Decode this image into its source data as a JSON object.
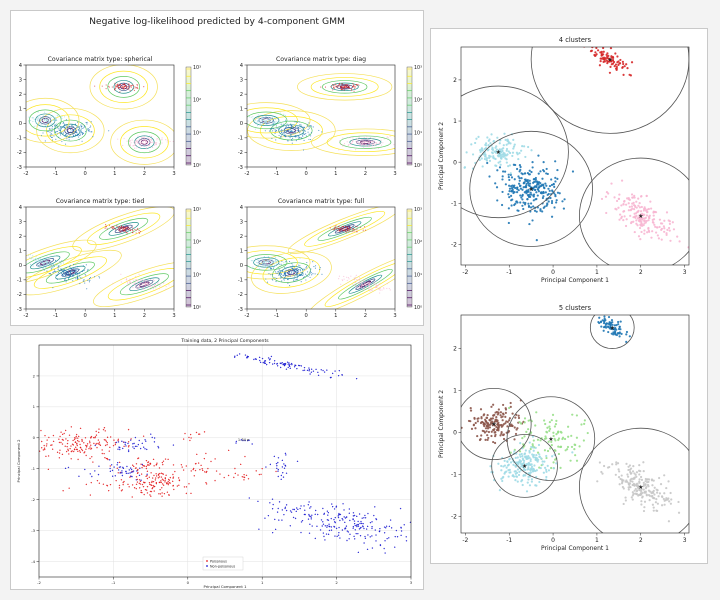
{
  "chart_data": [
    {
      "type": "contour",
      "title": "Negative log-likelihood predicted by 4-component GMM",
      "colormap": "viridis",
      "colorbar_ticks": [
        "10⁰",
        "10¹",
        "10²",
        "10³"
      ],
      "subplots": [
        {
          "title": "Covariance matrix type: spherical",
          "kind": "spherical"
        },
        {
          "title": "Covariance matrix type: diag",
          "kind": "diag"
        },
        {
          "title": "Covariance matrix type: tied",
          "kind": "tied"
        },
        {
          "title": "Covariance matrix type: full",
          "kind": "full"
        }
      ],
      "xlim": [
        -2,
        3
      ],
      "ylim": [
        -3,
        4
      ],
      "xticks": [
        -2,
        -1,
        0,
        1,
        2,
        3
      ],
      "yticks": [
        -3,
        -2,
        -1,
        0,
        1,
        2,
        3,
        4
      ],
      "clusters": [
        {
          "center": [
            1.3,
            2.5
          ],
          "color": "#d62728",
          "sx": 0.3,
          "sy": 0.12,
          "n": 70
        },
        {
          "center": [
            -0.5,
            -0.5
          ],
          "color": "#1f77b4",
          "sx": 0.4,
          "sy": 0.32,
          "n": 170
        },
        {
          "center": [
            -1.35,
            0.2
          ],
          "color": "#9edae5",
          "sx": 0.3,
          "sy": 0.2,
          "n": 110
        },
        {
          "center": [
            2.0,
            -1.3
          ],
          "color": "#f7b6d2",
          "sx": 0.4,
          "sy": 0.2,
          "n": 110
        }
      ]
    },
    {
      "type": "scatter",
      "title": "Training data, 2 Principal Components",
      "xlabel": "Principal Component 1",
      "ylabel": "Principal Component 2",
      "xlim": [
        -2,
        3
      ],
      "ylim": [
        -4.5,
        3
      ],
      "xticks": [
        -2,
        -1,
        0,
        1,
        2,
        3
      ],
      "yticks": [
        -4,
        -3,
        -2,
        -1,
        0,
        1,
        2
      ],
      "grid": true,
      "legend": {
        "position": "bottom-center",
        "entries": [
          "Poisonous",
          "Non-poisonous"
        ]
      },
      "annotations": [
        {
          "text": "1.34 e",
          "x": 0.75,
          "y": -0.1
        }
      ],
      "series": [
        {
          "name": "Poisonous",
          "color": "#e31a1c",
          "groups": [
            [
              -1.4,
              -0.2,
              0.3,
              0.25,
              170
            ],
            [
              -0.5,
              -1.45,
              0.3,
              0.22,
              150
            ],
            [
              -0.55,
              -0.85,
              0.18,
              0.12,
              40
            ],
            [
              0.2,
              -0.9,
              0.22,
              0.2,
              30
            ],
            [
              0.7,
              -1.2,
              0.2,
              0.1,
              20
            ],
            [
              0.05,
              0.1,
              0.1,
              0.1,
              10
            ]
          ]
        },
        {
          "name": "Non-poisonous",
          "color": "#1515d0",
          "groups": [
            [
              1.35,
              2.35,
              0.35,
              0.08,
              90
            ],
            [
              2.1,
              -2.8,
              0.55,
              0.3,
              240
            ],
            [
              -0.7,
              -0.2,
              0.2,
              0.12,
              40
            ],
            [
              -0.95,
              -1.1,
              0.25,
              0.12,
              50
            ],
            [
              1.25,
              -0.95,
              0.07,
              0.22,
              25
            ],
            [
              0.75,
              -0.15,
              0.08,
              0.06,
              8
            ]
          ]
        }
      ]
    },
    {
      "type": "scatter",
      "title": "4 clusters",
      "xlabel": "Principal Component 1",
      "ylabel": "Principal Component 2",
      "xlim": [
        -2.1,
        3.1
      ],
      "ylim": [
        -2.5,
        2.8
      ],
      "xticks": [
        -2,
        -1,
        0,
        1,
        2,
        3
      ],
      "yticks": [
        -2,
        -1,
        0,
        1,
        2
      ],
      "clusters": [
        {
          "center": [
            1.3,
            2.5
          ],
          "color": "#d62728",
          "sx": 0.25,
          "sy": 0.1,
          "n": 90,
          "radius": 1.8
        },
        {
          "center": [
            -0.5,
            -0.65
          ],
          "color": "#1f77b4",
          "sx": 0.35,
          "sy": 0.3,
          "n": 260,
          "radius": 1.4
        },
        {
          "center": [
            -1.25,
            0.25
          ],
          "color": "#9edae5",
          "sx": 0.28,
          "sy": 0.18,
          "n": 150,
          "radius": 1.6
        },
        {
          "center": [
            2.0,
            -1.3
          ],
          "color": "#f7b6d2",
          "sx": 0.35,
          "sy": 0.2,
          "n": 190,
          "radius": 1.4
        }
      ]
    },
    {
      "type": "scatter",
      "title": "5 clusters",
      "xlabel": "Principal Component 1",
      "ylabel": "Principal Component 2",
      "xlim": [
        -2.1,
        3.1
      ],
      "ylim": [
        -2.4,
        2.8
      ],
      "xticks": [
        -2,
        -1,
        0,
        1,
        2,
        3
      ],
      "yticks": [
        -2,
        -1,
        0,
        1,
        2
      ],
      "clusters": [
        {
          "center": [
            1.35,
            2.5
          ],
          "color": "#1f77b4",
          "sx": 0.18,
          "sy": 0.1,
          "n": 80,
          "radius": 0.5
        },
        {
          "center": [
            -1.35,
            0.2
          ],
          "color": "#8c564b",
          "sx": 0.28,
          "sy": 0.2,
          "n": 170,
          "radius": 0.85
        },
        {
          "center": [
            -0.05,
            -0.15
          ],
          "color": "#98df8a",
          "sx": 0.4,
          "sy": 0.3,
          "n": 110,
          "radius": 1.0
        },
        {
          "center": [
            -0.65,
            -0.8
          ],
          "color": "#9edae5",
          "sx": 0.32,
          "sy": 0.22,
          "n": 200,
          "radius": 0.75
        },
        {
          "center": [
            2.0,
            -1.3
          ],
          "color": "#c7c7c7",
          "sx": 0.35,
          "sy": 0.2,
          "n": 200,
          "radius": 1.4
        }
      ]
    }
  ]
}
